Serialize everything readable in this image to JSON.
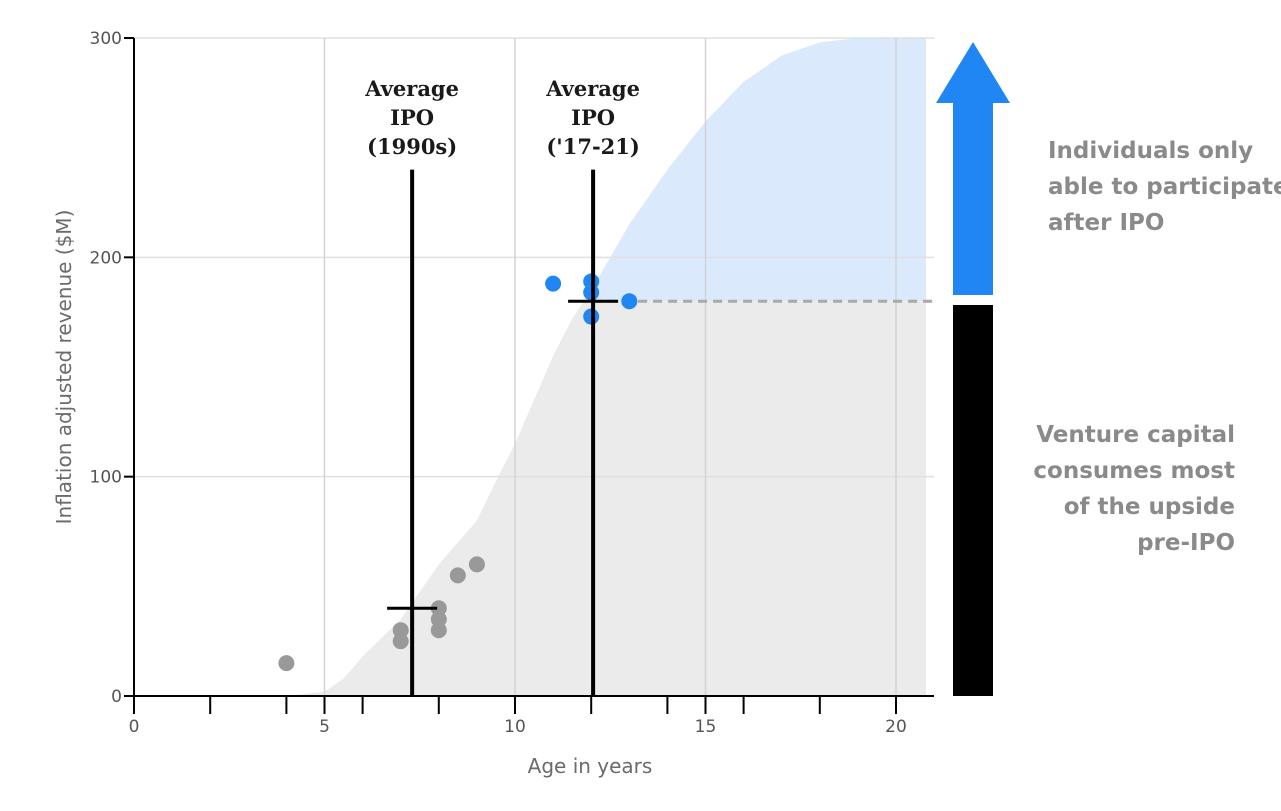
{
  "chart_data": {
    "type": "scatter",
    "xlabel": "Age in years",
    "ylabel": "Inflation adjusted revenue ($M)",
    "xlim": [
      0,
      21
    ],
    "ylim": [
      0,
      300
    ],
    "x_ticks": [
      0,
      5,
      10,
      15,
      20
    ],
    "x_minor_ticks": [
      2,
      4,
      6,
      8,
      12,
      14,
      16,
      18
    ],
    "y_ticks": [
      0,
      100,
      200,
      300
    ],
    "grid": true,
    "colors": {
      "pre_ipo": "#999999",
      "post_ipo": "#1f86f3",
      "area_gray": "#ebebeb",
      "area_blue": "#dbe9fc",
      "arrow": "#1f86f3",
      "bar": "#000000",
      "dashed": "#a9a9a9"
    },
    "growth_curve": {
      "x": [
        4,
        5,
        5.5,
        6,
        7,
        8,
        9,
        9.5,
        10,
        10.5,
        11,
        11.5,
        12,
        12.5,
        13,
        14,
        15,
        16,
        17,
        18,
        19,
        20,
        21
      ],
      "y": [
        0,
        2,
        8,
        18,
        35,
        60,
        80,
        98,
        115,
        135,
        155,
        172,
        185,
        200,
        215,
        240,
        262,
        280,
        292,
        298,
        300,
        300,
        300
      ]
    },
    "ipo_threshold": 180,
    "series": [
      {
        "points": [
          [
            4,
            15
          ],
          [
            7,
            30
          ],
          [
            7,
            25
          ],
          [
            8,
            40
          ],
          [
            8,
            35
          ],
          [
            8,
            30
          ],
          [
            8.5,
            55
          ],
          [
            9,
            60
          ]
        ]
      },
      {
        "points": [
          [
            11,
            188
          ],
          [
            12,
            189
          ],
          [
            12,
            184
          ],
          [
            12,
            173
          ],
          [
            13,
            180
          ]
        ]
      }
    ],
    "annotations": [
      {
        "label_lines": [
          "Average",
          "IPO",
          "(1990s)"
        ],
        "x": 7.3,
        "y": 40,
        "ymax": 240
      },
      {
        "label_lines": [
          "Average",
          "IPO",
          "('17-21)"
        ],
        "x": 12.05,
        "y": 180,
        "ymax": 240
      }
    ],
    "side_labels": {
      "top": [
        "Individuals only",
        "able to participate",
        "after IPO"
      ],
      "bottom": [
        "Venture capital",
        "consumes most",
        "of the upside",
        "pre-IPO"
      ]
    }
  }
}
